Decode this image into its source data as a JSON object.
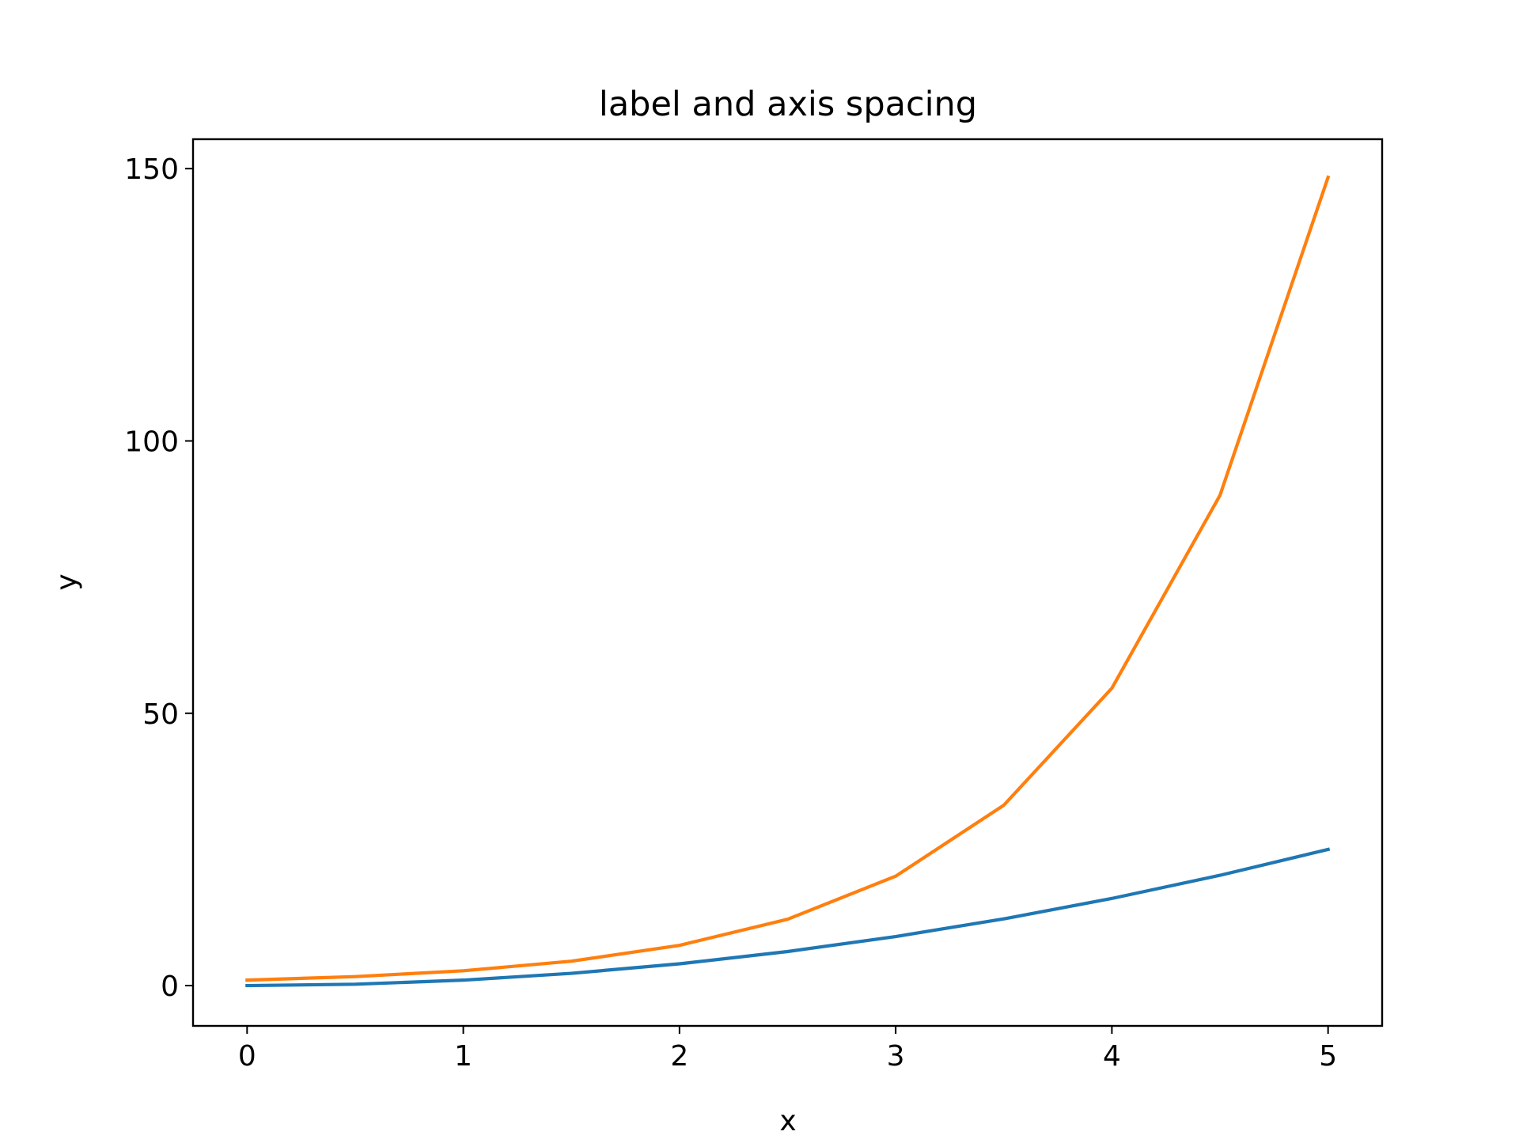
{
  "chart_data": {
    "type": "line",
    "title": "label and axis spacing",
    "xlabel": "x",
    "ylabel": "y",
    "xlim": [
      -0.25,
      5.25
    ],
    "ylim": [
      -7.4,
      155.4
    ],
    "xticks": [
      0,
      1,
      2,
      3,
      4,
      5
    ],
    "yticks": [
      0,
      50,
      100,
      150
    ],
    "grid": false,
    "legend": "none",
    "x": [
      0,
      0.5,
      1,
      1.5,
      2,
      2.5,
      3,
      3.5,
      4,
      4.5,
      5
    ],
    "series": [
      {
        "color": "#1f77b4",
        "values": [
          0,
          0.25,
          1,
          2.25,
          4,
          6.25,
          9,
          12.25,
          16,
          20.25,
          25
        ]
      },
      {
        "color": "#ff7f0e",
        "values": [
          1,
          1.65,
          2.72,
          4.48,
          7.39,
          12.18,
          20.09,
          33.12,
          54.6,
          90.02,
          148.41
        ]
      }
    ]
  }
}
